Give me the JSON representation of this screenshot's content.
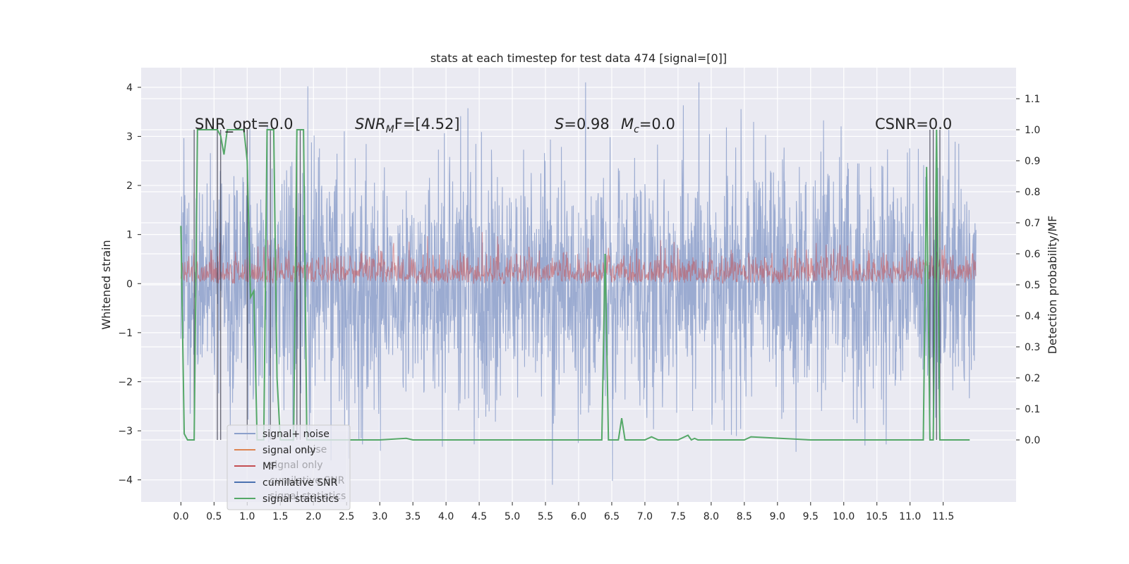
{
  "chart_data": {
    "type": "line",
    "title": "stats at each timestep for test data 474 [signal=[0]]",
    "xlabel": "",
    "ylabel": "Whitened strain",
    "ylabel_right": "Detection probability/MF",
    "xlim": [
      -0.6,
      12.6
    ],
    "ylim": [
      -4.45,
      4.4
    ],
    "ylim_right": [
      -0.2,
      1.2
    ],
    "xticks": [
      "0.0",
      "0.5",
      "1.0",
      "1.5",
      "2.0",
      "2.5",
      "3.0",
      "3.5",
      "4.0",
      "4.5",
      "5.0",
      "5.5",
      "6.0",
      "6.5",
      "7.0",
      "7.5",
      "8.0",
      "8.5",
      "9.0",
      "9.5",
      "10.0",
      "10.5",
      "11.0",
      "11.5"
    ],
    "yticks": [
      "4",
      "3",
      "2",
      "1",
      "0",
      "−1",
      "−2",
      "−3",
      "−4"
    ],
    "yticks_right": [
      "1.1",
      "1.0",
      "0.9",
      "0.8",
      "0.7",
      "0.6",
      "0.5",
      "0.4",
      "0.3",
      "0.2",
      "0.1",
      "0.0"
    ],
    "grid": true,
    "annotations": {
      "snr_opt": "SNR_opt=0.0",
      "snr_mf_name": "SNR",
      "snr_mf_sub": "M",
      "snr_mf_value": "F=[4.52]",
      "s_name": "S",
      "s_value": "=0.98",
      "mc_name": "M",
      "mc_sub": "c",
      "mc_value": "=0.0",
      "csnr": "CSNR=0.0"
    },
    "legend": {
      "placement": "lower-left",
      "entries": [
        {
          "label": "signal+ noise",
          "color": "#8da0cb"
        },
        {
          "label": "signal only",
          "color": "#dd8452"
        },
        {
          "label": "MF",
          "color": "#c44e52"
        },
        {
          "label": "cumilative SNR",
          "color": "#4c72b0"
        },
        {
          "label": "signal statistics",
          "color": "#55a868"
        }
      ],
      "ghost_entries": [
        "noise",
        "signal only",
        "cumilative SNR",
        "signal statistics"
      ]
    },
    "series": [
      {
        "name": "signal+ noise",
        "description": "whitened strain noise, approx amplitude ±2 to ±4",
        "x_range": [
          0.0,
          12.0
        ]
      },
      {
        "name": "MF",
        "description": "matched filter output around 0.5 on right axis"
      },
      {
        "name": "signal statistics",
        "x": [
          0.0,
          0.05,
          0.1,
          0.15,
          0.2,
          0.25,
          0.3,
          0.4,
          0.5,
          0.55,
          0.6,
          0.65,
          0.7,
          0.75,
          0.8,
          0.85,
          0.9,
          0.95,
          1.0,
          1.05,
          1.1,
          1.15,
          1.2,
          1.25,
          1.3,
          1.35,
          1.4,
          1.45,
          1.5,
          1.6,
          1.7,
          1.75,
          1.8,
          1.85,
          1.9,
          2.0,
          3.0,
          3.4,
          3.5,
          4.0,
          5.0,
          6.0,
          6.3,
          6.35,
          6.4,
          6.45,
          6.5,
          6.6,
          6.65,
          6.7,
          6.75,
          6.8,
          7.0,
          7.1,
          7.2,
          7.5,
          7.65,
          7.7,
          7.75,
          7.8,
          7.9,
          8.5,
          8.6,
          9.5,
          10.0,
          11.0,
          11.2,
          11.25,
          11.3,
          11.35,
          11.4,
          11.45,
          11.5,
          11.6,
          11.7,
          11.8,
          11.9
        ],
        "y": [
          0.69,
          0.02,
          0.0,
          0.0,
          0.0,
          1.0,
          1.0,
          1.0,
          1.0,
          1.0,
          0.98,
          0.92,
          1.0,
          1.0,
          1.0,
          1.0,
          1.0,
          1.0,
          0.9,
          0.46,
          0.48,
          0.0,
          0.0,
          0.0,
          1.0,
          1.0,
          1.0,
          0.2,
          0.0,
          0.0,
          0.0,
          1.0,
          1.0,
          1.0,
          0.0,
          0.0,
          0.0,
          0.005,
          0.0,
          0.0,
          0.0,
          0.0,
          0.0,
          0.0,
          0.6,
          0.0,
          0.0,
          0.0,
          0.07,
          0.0,
          0.0,
          0.0,
          0.0,
          0.01,
          0.0,
          0.0,
          0.015,
          0.0,
          0.005,
          0.0,
          0.0,
          0.0,
          0.01,
          0.0,
          0.0,
          0.0,
          0.0,
          0.88,
          0.0,
          0.0,
          1.0,
          0.0,
          0.0,
          0.0,
          0.0,
          0.0,
          0.0
        ]
      },
      {
        "name": "vertical markers",
        "x": [
          0.2,
          0.55,
          0.6,
          1.0,
          1.35,
          1.75,
          1.8,
          11.3,
          11.35,
          11.4,
          11.45
        ]
      }
    ]
  }
}
